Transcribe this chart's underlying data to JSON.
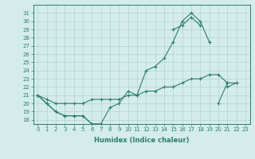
{
  "xlabel": "Humidex (Indice chaleur)",
  "x": [
    0,
    1,
    2,
    3,
    4,
    5,
    6,
    7,
    8,
    9,
    10,
    11,
    12,
    13,
    14,
    15,
    16,
    17,
    18,
    19,
    20,
    21,
    22,
    23
  ],
  "line1": [
    21,
    20,
    19,
    18.5,
    18.5,
    18.5,
    17.5,
    17.5,
    19.5,
    20,
    21.5,
    21,
    24,
    24.5,
    25.5,
    27.5,
    30,
    31,
    30,
    27.5,
    null,
    22,
    22.5,
    null
  ],
  "line2": [
    21,
    20,
    19,
    18.5,
    18.5,
    18.5,
    17.5,
    17.5,
    null,
    null,
    null,
    null,
    null,
    null,
    null,
    29,
    29.5,
    30.5,
    29.5,
    null,
    20,
    22.5,
    null,
    null
  ],
  "line3": [
    21,
    20.5,
    20,
    20,
    20,
    20,
    20.5,
    20.5,
    20.5,
    20.5,
    21,
    21,
    21.5,
    21.5,
    22,
    22,
    22.5,
    23,
    23,
    23.5,
    23.5,
    22.5,
    22.5,
    null
  ],
  "line_color": "#2d7d6e",
  "bg_color": "#d4ecea",
  "grid_color": "#b0d4d0",
  "ylim": [
    17.5,
    32
  ],
  "yticks": [
    18,
    19,
    20,
    21,
    22,
    23,
    24,
    25,
    26,
    27,
    28,
    29,
    30,
    31
  ],
  "xticks": [
    0,
    1,
    2,
    3,
    4,
    5,
    6,
    7,
    8,
    9,
    10,
    11,
    12,
    13,
    14,
    15,
    16,
    17,
    18,
    19,
    20,
    21,
    22,
    23
  ],
  "marker": "+",
  "ms": 3,
  "lw": 0.8
}
